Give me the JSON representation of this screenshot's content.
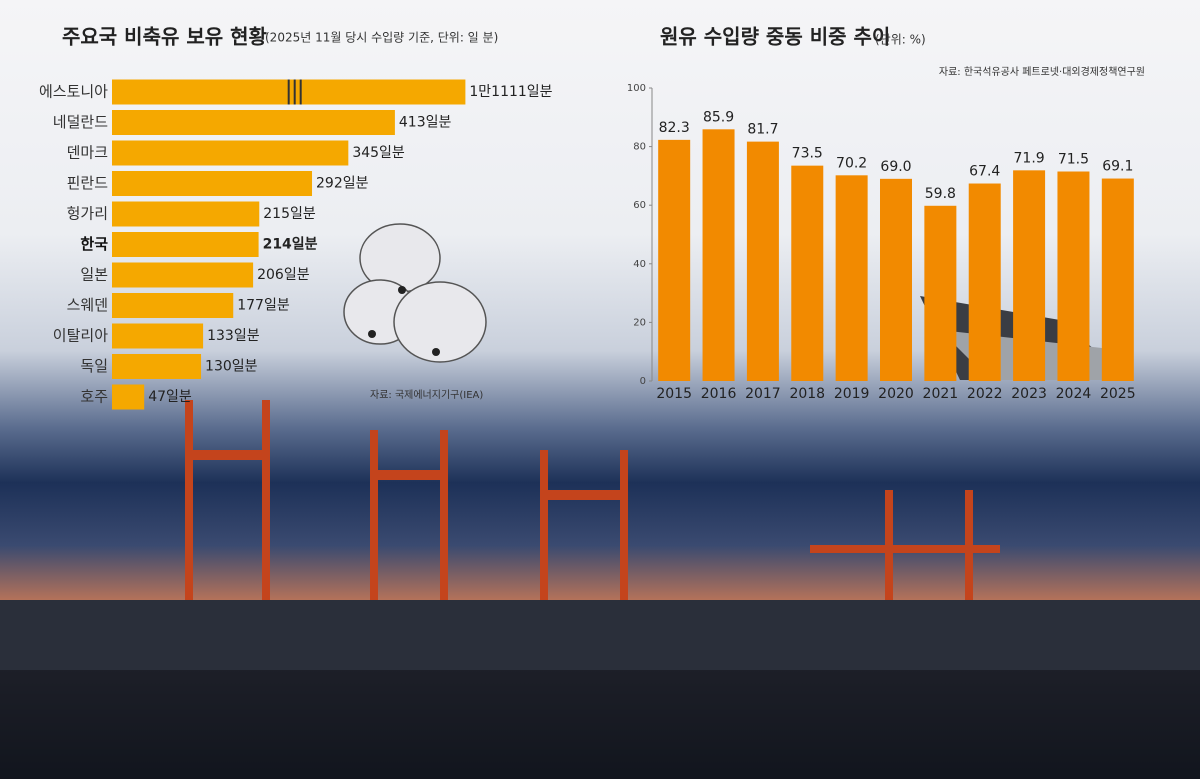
{
  "chart_data": [
    {
      "type": "hbar",
      "title": "주요국 비축유 보유 현황",
      "subtitle": "(2025년 11월 당시 수입량 기준, 단위: 일 분)",
      "source": "자료: 국제에너지기구(IEA)",
      "categories": [
        "에스토니아",
        "네덜란드",
        "덴마크",
        "핀란드",
        "헝가리",
        "한국",
        "일본",
        "스웨덴",
        "이탈리아",
        "독일",
        "호주"
      ],
      "values": [
        11111,
        413,
        345,
        292,
        215,
        214,
        206,
        177,
        133,
        130,
        47
      ],
      "value_labels": [
        "1만1111일분",
        "413일분",
        "345일분",
        "292일분",
        "215일분",
        "214일분",
        "206일분",
        "177일분",
        "133일분",
        "130일분",
        "47일분"
      ],
      "color": "#f5a800",
      "highlight_category": "한국",
      "axis_break": true
    },
    {
      "type": "bar",
      "title": "원유 수입량 중동 비중 추이",
      "subtitle": "(단위: %)",
      "source": "자료: 한국석유공사 페트로넷·대외경제정책연구원",
      "categories": [
        "2015",
        "2016",
        "2017",
        "2018",
        "2019",
        "2020",
        "2021",
        "2022",
        "2023",
        "2024",
        "2025"
      ],
      "values": [
        82.3,
        85.9,
        81.7,
        73.5,
        70.2,
        69.0,
        59.8,
        67.4,
        71.9,
        71.5,
        69.1
      ],
      "value_labels": [
        "82.3",
        "85.9",
        "81.7",
        "73.5",
        "70.2",
        "69.0",
        "59.8",
        "67.4",
        "71.9",
        "71.5",
        "69.1"
      ],
      "color": "#f28a00",
      "ylim": [
        0,
        100
      ],
      "yticks": [
        0,
        20,
        40,
        60,
        80,
        100
      ],
      "grid": false
    }
  ]
}
